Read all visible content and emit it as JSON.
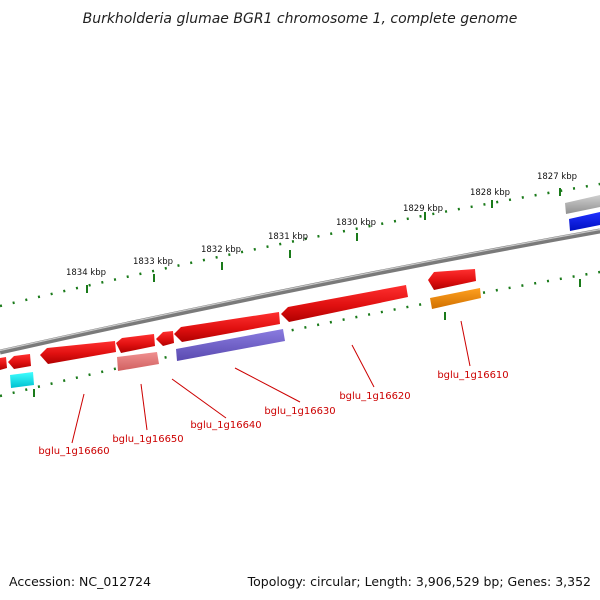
{
  "title": "Burkholderia glumae BGR1 chromosome 1, complete genome",
  "footer": {
    "accession": "Accession: NC_012724",
    "topology": "Topology: circular; Length: 3,906,529 bp; Genes: 3,352"
  },
  "kbp_labels": [
    "1827 kbp",
    "1828 kbp",
    "1829 kbp",
    "1830 kbp",
    "1831 kbp",
    "1832 kbp",
    "1833 kbp",
    "1834 kbp"
  ],
  "gene_labels": [
    "bglu_1g16610",
    "bglu_1g16620",
    "bglu_1g16630",
    "bglu_1g16640",
    "bglu_1g16650",
    "bglu_1g16660"
  ],
  "colors": {
    "forward_gene": "#e01010",
    "cds_violet": "#6f5fc8",
    "cds_orange": "#f08a00",
    "cds_pink": "#e87878",
    "cds_cyan": "#00e0e8",
    "cds_blue": "#0a18e0",
    "cds_gray": "#a8a8a8",
    "backbone": "#808080",
    "ticks": "#1a7a1a",
    "label_red": "#cc0000"
  }
}
